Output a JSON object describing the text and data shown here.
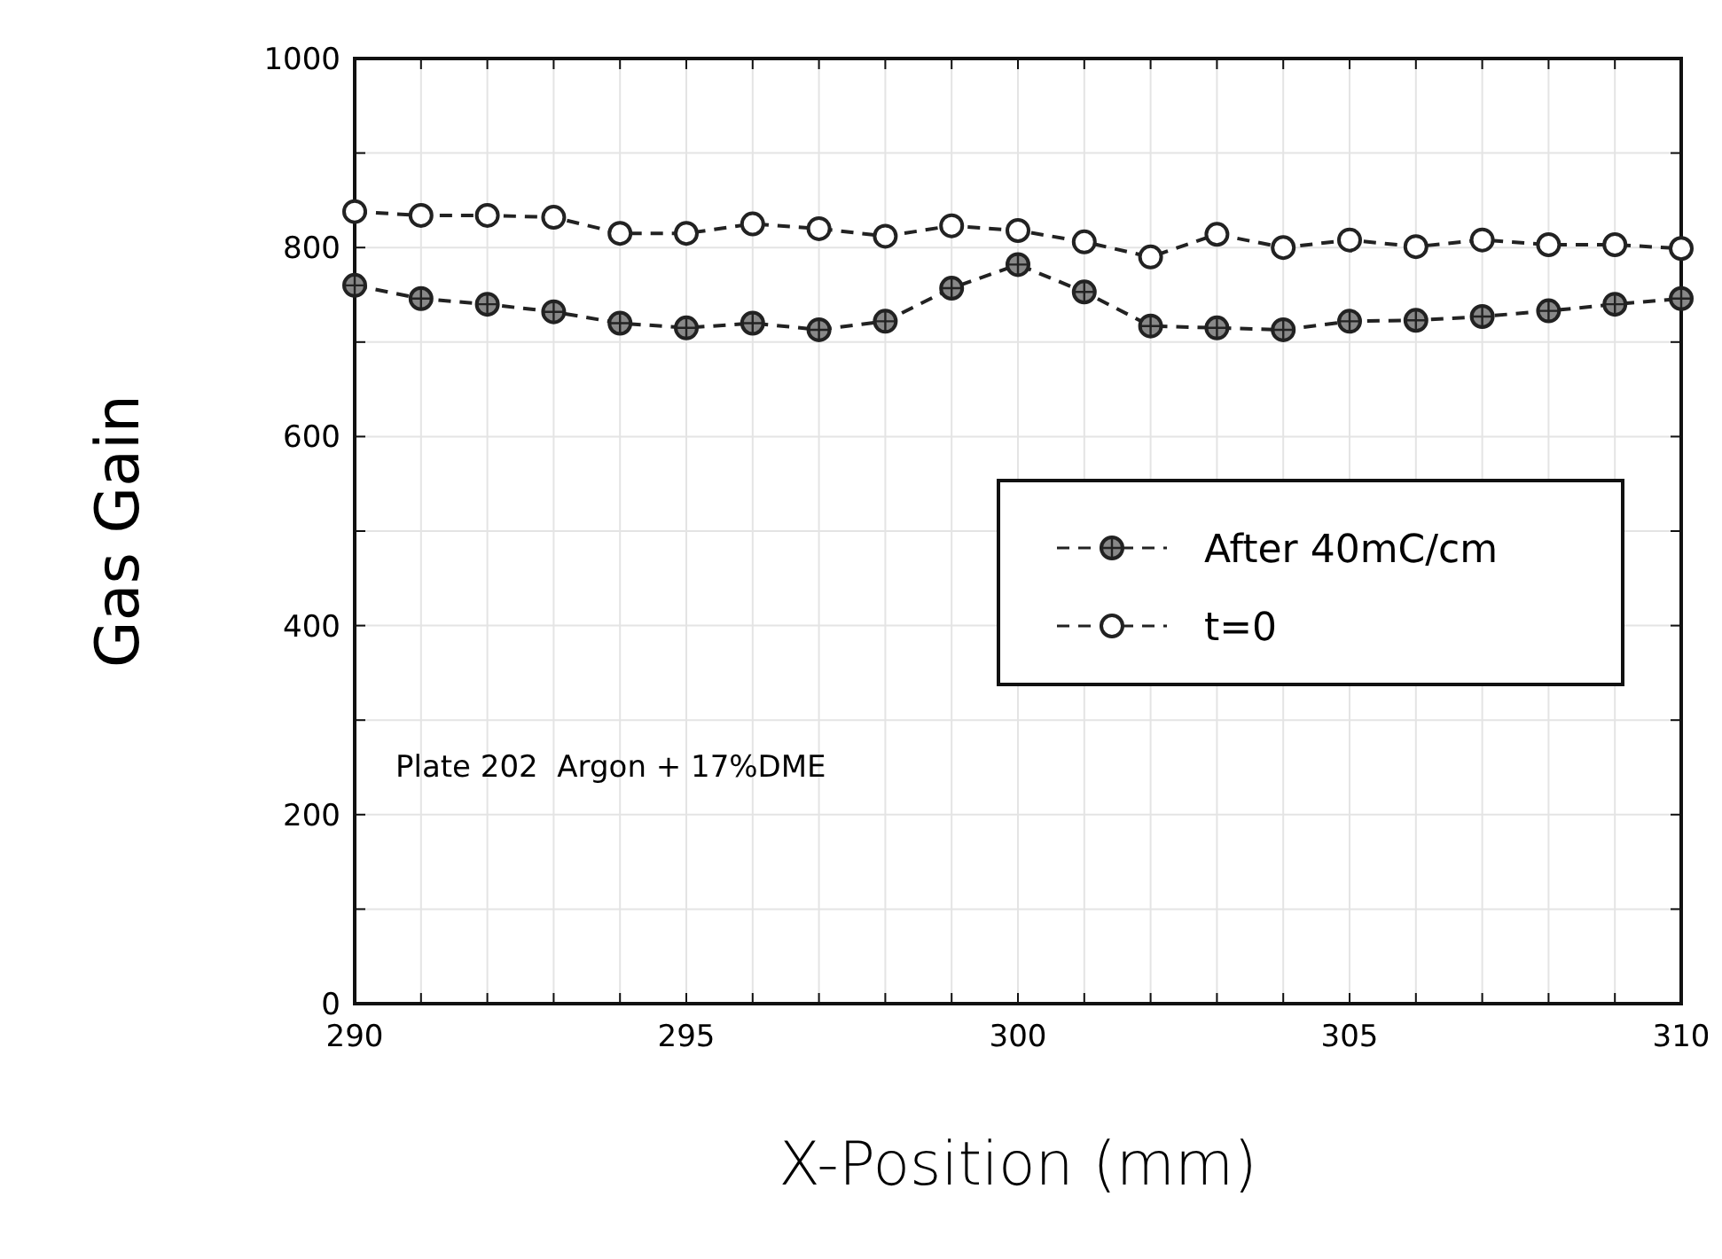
{
  "chart_data": {
    "type": "line",
    "xlabel": "X-Position (mm)",
    "ylabel": "Gas Gain",
    "x": [
      290,
      291,
      292,
      293,
      294,
      295,
      296,
      297,
      298,
      299,
      300,
      301,
      302,
      303,
      304,
      305,
      306,
      307,
      308,
      309,
      310
    ],
    "series": [
      {
        "name": "After 40mC/cm",
        "color": "#222222",
        "marker": "circle",
        "line_style": "dashed",
        "values": [
          760,
          746,
          740,
          732,
          720,
          715,
          720,
          713,
          722,
          757,
          782,
          753,
          717,
          715,
          713,
          722,
          723,
          727,
          733,
          740,
          746
        ]
      },
      {
        "name": "t=0",
        "color": "#222222",
        "marker": "circle",
        "line_style": "dashed",
        "values": [
          838,
          834,
          834,
          832,
          815,
          815,
          825,
          820,
          812,
          823,
          818,
          806,
          790,
          814,
          800,
          808,
          801,
          808,
          803,
          803,
          799
        ]
      }
    ],
    "xlim": [
      290,
      310
    ],
    "xticks": [
      290,
      {
        "value": 291,
        "label": null
      },
      {
        "value": 292,
        "label": null
      },
      {
        "value": 293,
        "label": null
      },
      {
        "value": 294,
        "label": null
      },
      295,
      {
        "value": 296,
        "label": null
      },
      {
        "value": 297,
        "label": null
      },
      {
        "value": 298,
        "label": null
      },
      {
        "value": 299,
        "label": null
      },
      300,
      {
        "value": 301,
        "label": null
      },
      {
        "value": 302,
        "label": null
      },
      {
        "value": 303,
        "label": null
      },
      {
        "value": 304,
        "label": null
      },
      305,
      {
        "value": 306,
        "label": null
      },
      {
        "value": 307,
        "label": null
      },
      {
        "value": 308,
        "label": null
      },
      {
        "value": 309,
        "label": null
      },
      310
    ],
    "ylim": [
      0,
      1000
    ],
    "yticks": [
      0,
      {
        "value": 100,
        "label": null
      },
      200,
      {
        "value": 300,
        "label": null
      },
      400,
      {
        "value": 500,
        "label": null
      },
      600,
      {
        "value": 700,
        "label": null
      },
      800,
      {
        "value": 900,
        "label": null
      },
      1000
    ],
    "grid": true,
    "legend": "right",
    "annotations": [
      "Plate 202  Argon + 17%DME"
    ]
  }
}
